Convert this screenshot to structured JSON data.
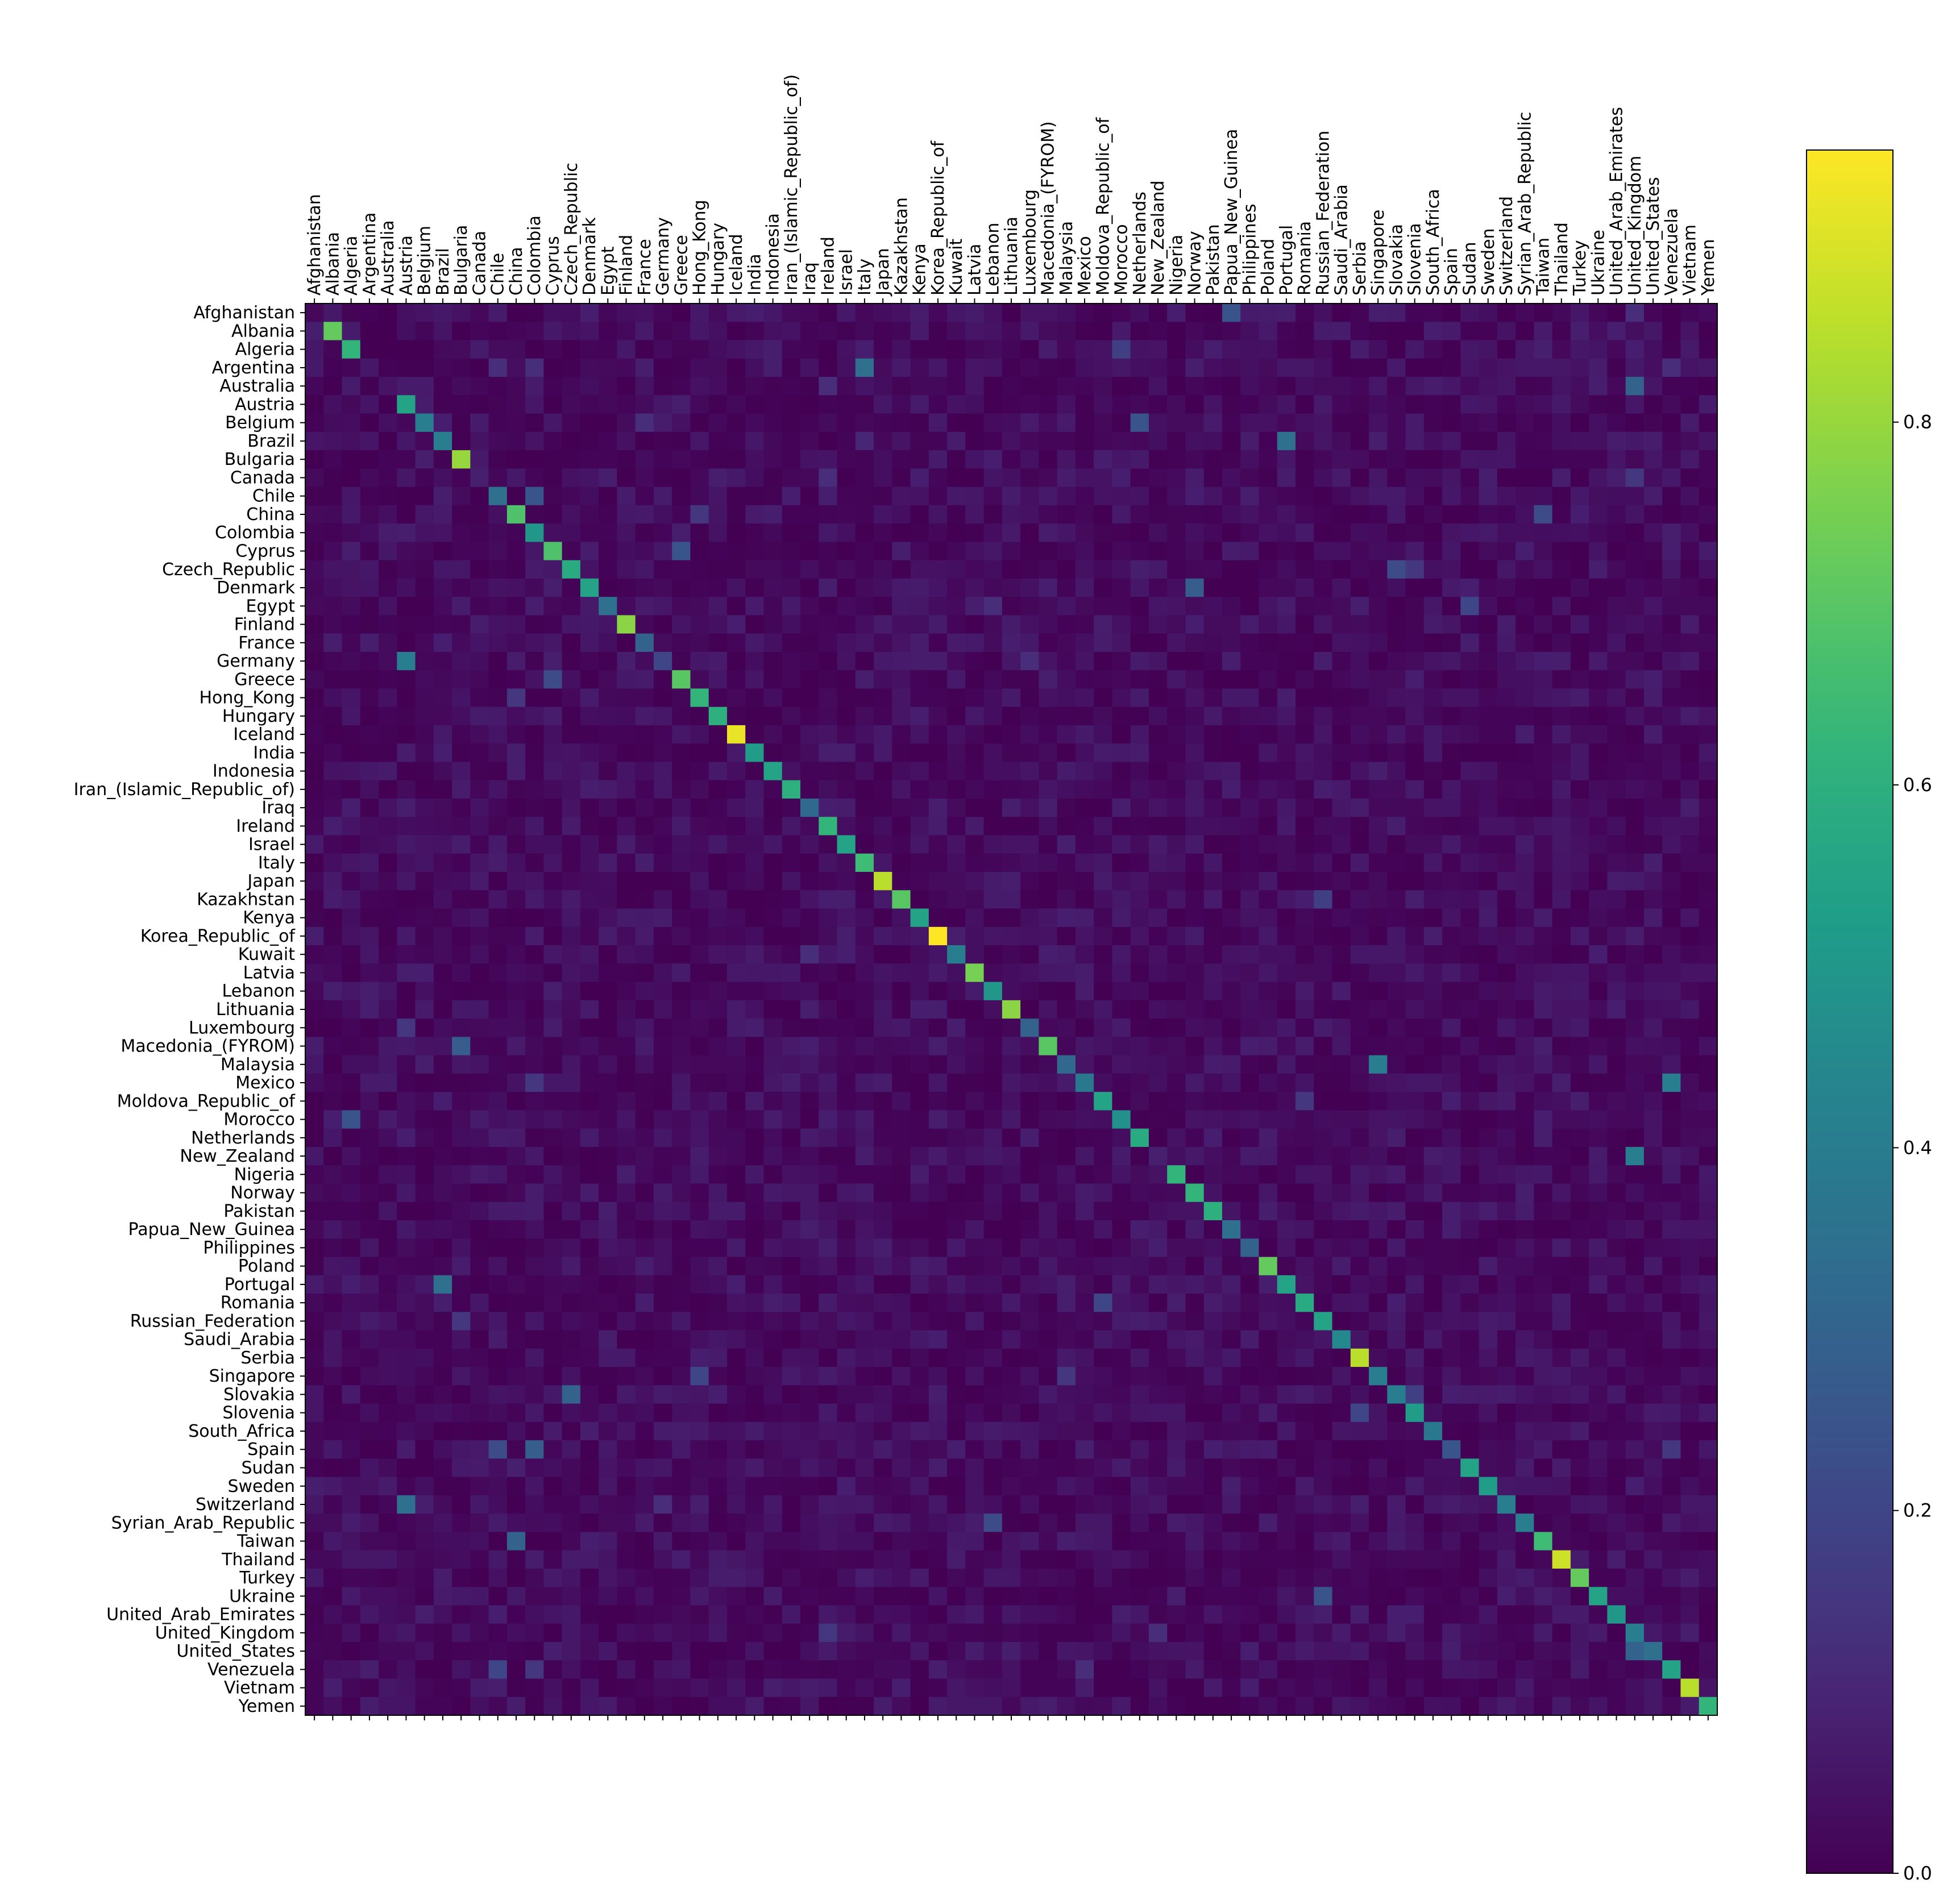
{
  "chart_data": {
    "type": "heatmap",
    "title": "",
    "xlabel": "",
    "ylabel": "",
    "categories": [
      "Afghanistan",
      "Albania",
      "Algeria",
      "Argentina",
      "Australia",
      "Austria",
      "Belgium",
      "Brazil",
      "Bulgaria",
      "Canada",
      "Chile",
      "China",
      "Colombia",
      "Cyprus",
      "Czech_Republic",
      "Denmark",
      "Egypt",
      "Finland",
      "France",
      "Germany",
      "Greece",
      "Hong_Kong",
      "Hungary",
      "Iceland",
      "India",
      "Indonesia",
      "Iran_(Islamic_Republic_of)",
      "Iraq",
      "Ireland",
      "Israel",
      "Italy",
      "Japan",
      "Kazakhstan",
      "Kenya",
      "Korea_Republic_of",
      "Kuwait",
      "Latvia",
      "Lebanon",
      "Lithuania",
      "Luxembourg",
      "Macedonia_(FYROM)",
      "Malaysia",
      "Mexico",
      "Moldova_Republic_of",
      "Morocco",
      "Netherlands",
      "New_Zealand",
      "Nigeria",
      "Norway",
      "Pakistan",
      "Papua_New_Guinea",
      "Philippines",
      "Poland",
      "Portugal",
      "Romania",
      "Russian_Federation",
      "Saudi_Arabia",
      "Serbia",
      "Singapore",
      "Slovakia",
      "Slovenia",
      "South_Africa",
      "Spain",
      "Sudan",
      "Sweden",
      "Switzerland",
      "Syrian_Arab_Republic",
      "Taiwan",
      "Thailand",
      "Turkey",
      "Ukraine",
      "United_Arab_Emirates",
      "United_Kingdom",
      "United_States",
      "Venezuela",
      "Vietnam",
      "Yemen"
    ],
    "diagonal": [
      0.02,
      0.72,
      0.62,
      0.06,
      0.05,
      0.55,
      0.4,
      0.4,
      0.8,
      0.08,
      0.35,
      0.68,
      0.5,
      0.68,
      0.58,
      0.55,
      0.35,
      0.78,
      0.3,
      0.2,
      0.7,
      0.62,
      0.6,
      0.92,
      0.52,
      0.55,
      0.6,
      0.32,
      0.62,
      0.55,
      0.65,
      0.85,
      0.7,
      0.55,
      0.95,
      0.4,
      0.75,
      0.5,
      0.78,
      0.3,
      0.7,
      0.32,
      0.38,
      0.55,
      0.48,
      0.58,
      0.08,
      0.62,
      0.62,
      0.6,
      0.35,
      0.3,
      0.72,
      0.55,
      0.58,
      0.55,
      0.45,
      0.85,
      0.4,
      0.4,
      0.52,
      0.38,
      0.25,
      0.55,
      0.52,
      0.4,
      0.4,
      0.65,
      0.88,
      0.72,
      0.55,
      0.5,
      0.4,
      0.35,
      0.55,
      0.85,
      0.62
    ],
    "offdiagonal": [
      {
        "row": "Afghanistan",
        "col": "Papua_New_Guinea",
        "value": 0.25
      },
      {
        "row": "Afghanistan",
        "col": "United_Kingdom",
        "value": 0.12
      },
      {
        "row": "Algeria",
        "col": "Morocco",
        "value": 0.18
      },
      {
        "row": "Argentina",
        "col": "Italy",
        "value": 0.35
      },
      {
        "row": "Argentina",
        "col": "Chile",
        "value": 0.12
      },
      {
        "row": "Argentina",
        "col": "Colombia",
        "value": 0.12
      },
      {
        "row": "Argentina",
        "col": "Venezuela",
        "value": 0.12
      },
      {
        "row": "Australia",
        "col": "United_Kingdom",
        "value": 0.3
      },
      {
        "row": "Australia",
        "col": "Ireland",
        "value": 0.12
      },
      {
        "row": "Belgium",
        "col": "Netherlands",
        "value": 0.25
      },
      {
        "row": "Belgium",
        "col": "France",
        "value": 0.12
      },
      {
        "row": "Brazil",
        "col": "Portugal",
        "value": 0.35
      },
      {
        "row": "Brazil",
        "col": "Italy",
        "value": 0.1
      },
      {
        "row": "Canada",
        "col": "United_Kingdom",
        "value": 0.15
      },
      {
        "row": "Canada",
        "col": "Ireland",
        "value": 0.12
      },
      {
        "row": "Chile",
        "col": "Colombia",
        "value": 0.25
      },
      {
        "row": "China",
        "col": "Taiwan",
        "value": 0.22
      },
      {
        "row": "China",
        "col": "Hong_Kong",
        "value": 0.15
      },
      {
        "row": "Cyprus",
        "col": "Greece",
        "value": 0.25
      },
      {
        "row": "Czech_Republic",
        "col": "Slovakia",
        "value": 0.22
      },
      {
        "row": "Czech_Republic",
        "col": "Slovenia",
        "value": 0.15
      },
      {
        "row": "Denmark",
        "col": "Norway",
        "value": 0.28
      },
      {
        "row": "Egypt",
        "col": "Sudan",
        "value": 0.2
      },
      {
        "row": "Egypt",
        "col": "Lebanon",
        "value": 0.12
      },
      {
        "row": "Germany",
        "col": "Austria",
        "value": 0.4
      },
      {
        "row": "Germany",
        "col": "Luxembourg",
        "value": 0.12
      },
      {
        "row": "Greece",
        "col": "Cyprus",
        "value": 0.22
      },
      {
        "row": "Hong_Kong",
        "col": "China",
        "value": 0.15
      },
      {
        "row": "Kazakhstan",
        "col": "Russian_Federation",
        "value": 0.18
      },
      {
        "row": "Kuwait",
        "col": "Iraq",
        "value": 0.12
      },
      {
        "row": "Luxembourg",
        "col": "Austria",
        "value": 0.15
      },
      {
        "row": "Macedonia_(FYROM)",
        "col": "Bulgaria",
        "value": 0.28
      },
      {
        "row": "Malaysia",
        "col": "Singapore",
        "value": 0.4
      },
      {
        "row": "Mexico",
        "col": "Venezuela",
        "value": 0.4
      },
      {
        "row": "Mexico",
        "col": "Colombia",
        "value": 0.15
      },
      {
        "row": "Moldova_Republic_of",
        "col": "Romania",
        "value": 0.15
      },
      {
        "row": "Morocco",
        "col": "Algeria",
        "value": 0.25
      },
      {
        "row": "New_Zealand",
        "col": "United_Kingdom",
        "value": 0.4
      },
      {
        "row": "Portugal",
        "col": "Brazil",
        "value": 0.35
      },
      {
        "row": "Romania",
        "col": "Moldova_Republic_of",
        "value": 0.2
      },
      {
        "row": "Russian_Federation",
        "col": "Bulgaria",
        "value": 0.15
      },
      {
        "row": "Singapore",
        "col": "Hong_Kong",
        "value": 0.2
      },
      {
        "row": "Singapore",
        "col": "Malaysia",
        "value": 0.15
      },
      {
        "row": "Slovakia",
        "col": "Czech_Republic",
        "value": 0.3
      },
      {
        "row": "Slovakia",
        "col": "Slovenia",
        "value": 0.18
      },
      {
        "row": "Slovenia",
        "col": "Serbia",
        "value": 0.2
      },
      {
        "row": "Spain",
        "col": "Chile",
        "value": 0.22
      },
      {
        "row": "Spain",
        "col": "Colombia",
        "value": 0.28
      },
      {
        "row": "Spain",
        "col": "Venezuela",
        "value": 0.15
      },
      {
        "row": "Switzerland",
        "col": "Austria",
        "value": 0.35
      },
      {
        "row": "Switzerland",
        "col": "Germany",
        "value": 0.12
      },
      {
        "row": "Syrian_Arab_Republic",
        "col": "Lebanon",
        "value": 0.22
      },
      {
        "row": "Taiwan",
        "col": "China",
        "value": 0.3
      },
      {
        "row": "Ukraine",
        "col": "Russian_Federation",
        "value": 0.25
      },
      {
        "row": "United_Kingdom",
        "col": "Ireland",
        "value": 0.15
      },
      {
        "row": "United_Kingdom",
        "col": "New_Zealand",
        "value": 0.12
      },
      {
        "row": "United_States",
        "col": "United_Kingdom",
        "value": 0.3
      },
      {
        "row": "Venezuela",
        "col": "Chile",
        "value": 0.2
      },
      {
        "row": "Venezuela",
        "col": "Colombia",
        "value": 0.15
      },
      {
        "row": "Venezuela",
        "col": "Mexico",
        "value": 0.12
      }
    ],
    "background_range": [
      0.0,
      0.08
    ],
    "colorbar": {
      "colormap": "viridis",
      "range": [
        0.0,
        0.95
      ],
      "ticks": [
        0.0,
        0.2,
        0.4,
        0.6,
        0.8
      ],
      "tick_labels": [
        "0.0",
        "0.2",
        "0.4",
        "0.6",
        "0.8"
      ]
    },
    "grid": false,
    "legend": "colorbar-right"
  }
}
